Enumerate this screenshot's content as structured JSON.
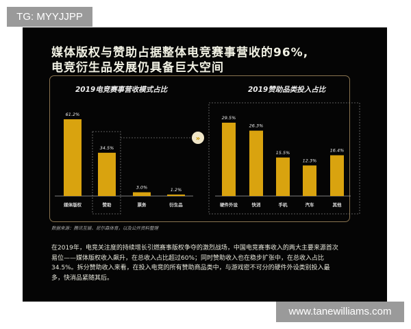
{
  "watermark_top": "TG: MYYJJPP",
  "watermark_bottom": "www.tanewilliams.com",
  "title_line1": "媒体版权与赞助占据整体电竞赛事营收的96%,",
  "title_line2": "电竞衍生品发展仍具备巨大空间",
  "source": "数据来源：腾讯互娱、尼尔森体育，以及公开资料整理",
  "paragraph": "在2019年，电竞关注度的持续增长引燃赛事版权争夺的激烈战场，中国电竞赛事收入的两大主要来源首次易位——媒体版权收入飙升，在总收入占比超过60%；同时赞助收入也在稳步扩张中，在总收入占比34.5%。拆分赞助收入来看，在投入电竞的所有赞助商品类中，与游戏密不可分的硬件外设类别投入最多，快消品紧随其后。",
  "colors": {
    "bar": "#d9a30f",
    "background": "#050505",
    "frame": "#8a7450"
  },
  "chart_data": [
    {
      "type": "bar",
      "title": "2019电竞赛事营收模式占比",
      "categories": [
        "媒体版权",
        "赞助",
        "票务",
        "衍生品"
      ],
      "values": [
        61.2,
        34.5,
        3.0,
        1.2
      ],
      "value_labels": [
        "61.2%",
        "34.5%",
        "3.0%",
        "1.2%"
      ],
      "highlight": "赞助"
    },
    {
      "type": "bar",
      "title": "2019赞助品类投入占比",
      "categories": [
        "硬件外设",
        "快消",
        "手机",
        "汽车",
        "其他"
      ],
      "values": [
        29.5,
        26.3,
        15.5,
        12.3,
        16.4
      ],
      "value_labels": [
        "29.5%",
        "26.3%",
        "15.5%",
        "12.3%",
        "16.4%"
      ]
    }
  ]
}
